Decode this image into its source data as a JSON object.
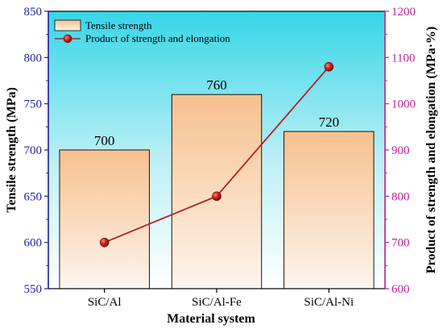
{
  "chart_data": {
    "type": "bar",
    "title": "",
    "xlabel": "Material system",
    "ylabel": "Tensile strength (MPa)",
    "y2label": "Product of strength and elongation (MPa·%)",
    "categories": [
      "SiC/Al",
      "SiC/Al-Fe",
      "SiC/Al-Ni"
    ],
    "ylim": [
      550,
      850
    ],
    "y2lim": [
      600,
      1200
    ],
    "yticks": [
      550,
      600,
      650,
      700,
      750,
      800,
      850
    ],
    "y2ticks": [
      600,
      700,
      800,
      900,
      1000,
      1100,
      1200
    ],
    "grid": false,
    "legend_position": "top-left",
    "series": [
      {
        "name": "Tensile strength",
        "kind": "bar",
        "axis": "left",
        "values": [
          700,
          760,
          720
        ],
        "labels": [
          "700",
          "760",
          "720"
        ]
      },
      {
        "name": "Product of strength and elongation",
        "kind": "line",
        "axis": "right",
        "values": [
          700,
          800,
          1080
        ]
      }
    ],
    "colors": {
      "left_axis": "#1f1fa8",
      "right_axis": "#c0209a",
      "line": "#b22222",
      "marker": "#b01818",
      "bar_top": "#f7c08e",
      "bar_bottom": "#fdf5ee",
      "background_top": "#36d6e8",
      "background_bottom": "#ffffff"
    }
  }
}
